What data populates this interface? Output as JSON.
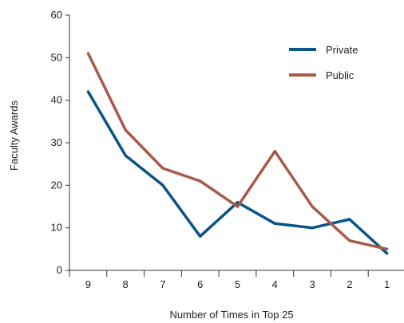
{
  "chart_data": {
    "type": "line",
    "title": "",
    "xlabel": "Number of Times in Top 25",
    "ylabel": "Faculty Awards",
    "x": [
      "9",
      "8",
      "7",
      "6",
      "5",
      "4",
      "3",
      "2",
      "1"
    ],
    "ylim": [
      0,
      60
    ],
    "yticks": [
      0,
      10,
      20,
      30,
      40,
      50,
      60
    ],
    "grid": false,
    "legend_position": "top-right",
    "series": [
      {
        "name": "Private",
        "color": "#0b5488",
        "values": [
          42,
          27,
          20,
          8,
          16,
          11,
          10,
          12,
          4
        ]
      },
      {
        "name": "Public",
        "color": "#a85a4a",
        "values": [
          51,
          33,
          24,
          21,
          15,
          28,
          15,
          7,
          5
        ]
      }
    ]
  }
}
